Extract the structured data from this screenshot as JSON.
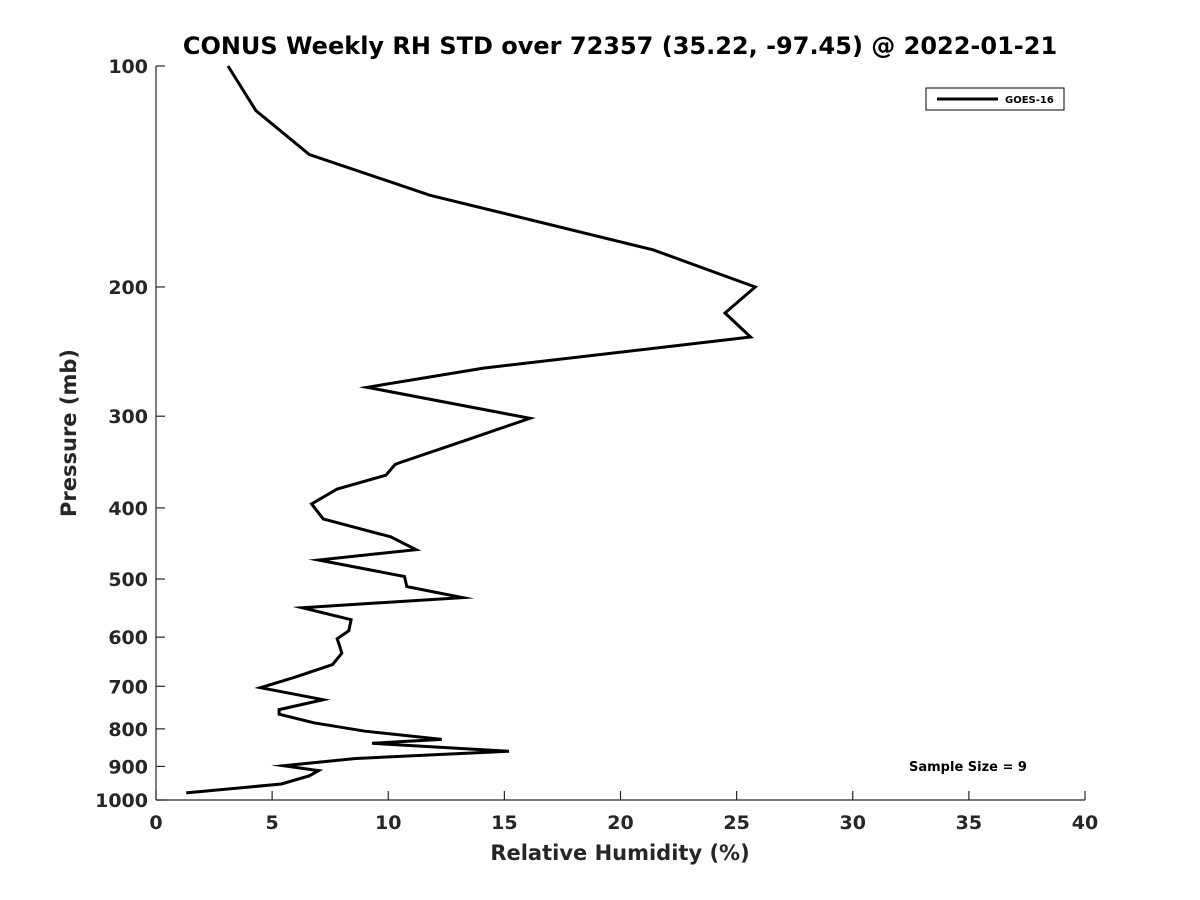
{
  "chart_data": {
    "type": "line",
    "title": "CONUS Weekly RH STD over 72357 (35.22, -97.45) @ 2022-01-21",
    "xlabel": "Relative Humidity (%)",
    "ylabel": "Pressure (mb)",
    "xlim": [
      0,
      40
    ],
    "ylim": [
      100,
      1000
    ],
    "y_scale": "log",
    "y_direction": "reversed",
    "x_ticks": [
      "0",
      "5",
      "10",
      "15",
      "20",
      "25",
      "30",
      "35",
      "40"
    ],
    "y_ticks": [
      "100",
      "200",
      "300",
      "400",
      "500",
      "600",
      "700",
      "800",
      "900",
      "1000"
    ],
    "grid": false,
    "legend_position": "top-right",
    "series": [
      {
        "name": "GOES-16",
        "color": "#000000",
        "x": [
          3.1,
          4.3,
          6.6,
          11.8,
          21.4,
          25.8,
          24.5,
          25.6,
          14.1,
          9.1,
          16.1,
          13.4,
          10.5,
          10.3,
          9.9,
          7.8,
          6.7,
          7.2,
          10.1,
          11.2,
          7.0,
          10.7,
          10.8,
          13.2,
          6.3,
          8.4,
          8.3,
          7.8,
          7.9,
          8.0,
          7.6,
          6.0,
          4.5,
          7.2,
          5.3,
          5.3,
          6.8,
          9.0,
          12.3,
          9.3,
          15.2,
          8.6,
          5.5,
          7.0,
          6.6,
          5.4,
          1.3
        ],
        "y": [
          100,
          115,
          132,
          150,
          178,
          200,
          217,
          234,
          258,
          274,
          302,
          323,
          347,
          349,
          361,
          377,
          395,
          414,
          438,
          456,
          471,
          496,
          512,
          530,
          547,
          568,
          588,
          603,
          616,
          631,
          654,
          680,
          703,
          730,
          753,
          764,
          785,
          806,
          827,
          837,
          858,
          878,
          898,
          912,
          927,
          951,
          978
        ]
      }
    ],
    "annotations": [
      "Sample Size = 9"
    ]
  }
}
